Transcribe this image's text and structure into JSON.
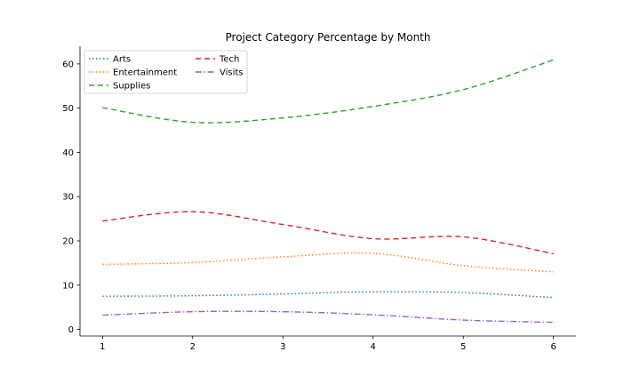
{
  "chart_data": {
    "type": "line",
    "title": "Project Category Percentage by Month",
    "xlabel": "",
    "ylabel": "",
    "x": [
      1,
      2,
      3,
      4,
      5,
      6
    ],
    "x_ticks": [
      "1",
      "2",
      "3",
      "4",
      "5",
      "6"
    ],
    "y_ticks": [
      "0",
      "10",
      "20",
      "30",
      "40",
      "50",
      "60"
    ],
    "xlim": [
      0.75,
      6.25
    ],
    "ylim": [
      -1.5,
      64
    ],
    "grid": false,
    "legend_placement": "top-left",
    "series": [
      {
        "name": "Arts",
        "color": "#1f77b4",
        "dash": "dotted",
        "values": [
          7.5,
          7.6,
          8.0,
          8.5,
          8.3,
          7.2
        ]
      },
      {
        "name": "Entertainment",
        "color": "#ff7f0e",
        "dash": "dotted",
        "values": [
          14.7,
          15.1,
          16.4,
          17.2,
          14.4,
          13.0
        ]
      },
      {
        "name": "Supplies",
        "color": "#2ca02c",
        "dash": "dashed",
        "values": [
          50.1,
          46.8,
          47.8,
          50.4,
          54.2,
          60.9
        ]
      },
      {
        "name": "Tech",
        "color": "#d62728",
        "dash": "dashed",
        "values": [
          24.5,
          26.6,
          23.7,
          20.5,
          20.9,
          17.1
        ]
      },
      {
        "name": "Visits",
        "color": "#9467bd",
        "dash": "dashdot",
        "values": [
          3.2,
          4.0,
          4.0,
          3.3,
          2.1,
          1.6
        ]
      }
    ]
  }
}
